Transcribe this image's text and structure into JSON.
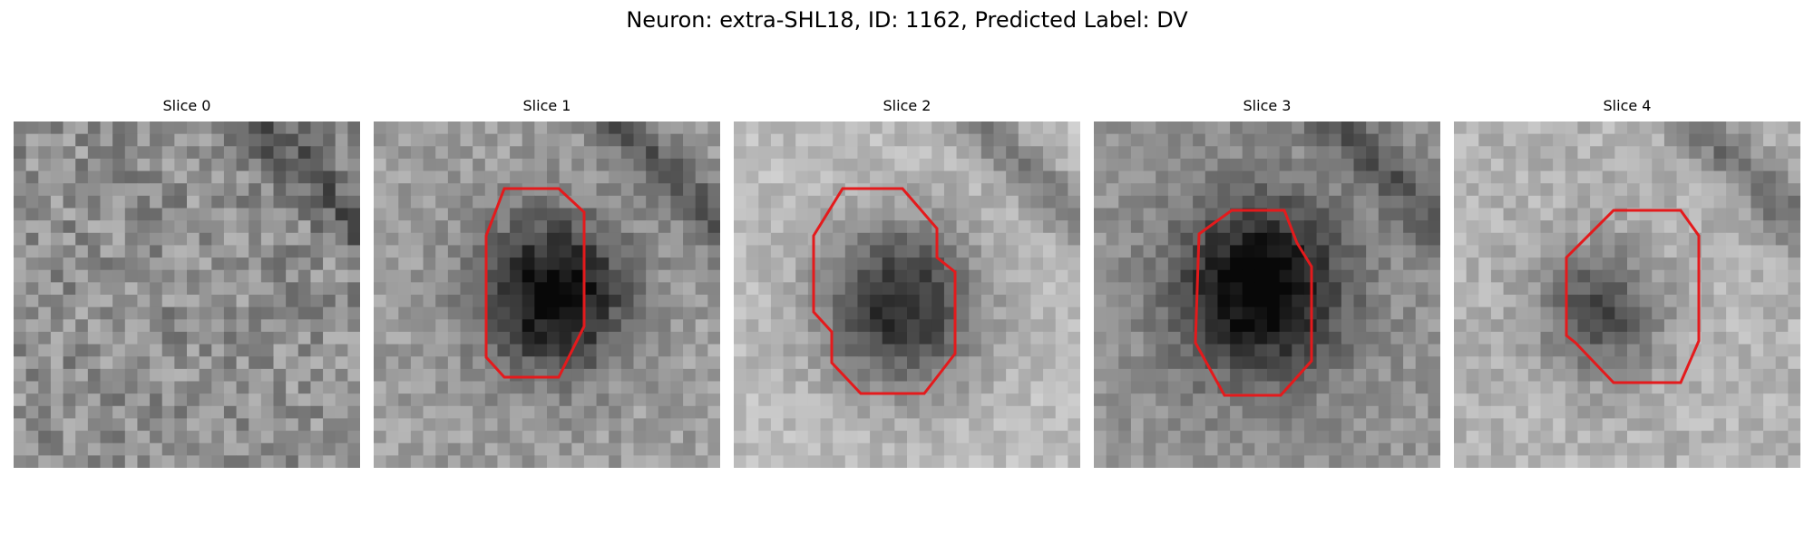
{
  "figure": {
    "title": "Neuron: extra-SHL18, ID: 1162, Predicted Label: DV"
  },
  "panels": [
    {
      "label": "Slice 0",
      "has_roi": false
    },
    {
      "label": "Slice 1",
      "has_roi": true
    },
    {
      "label": "Slice 2",
      "has_roi": true
    },
    {
      "label": "Slice 3",
      "has_roi": true
    },
    {
      "label": "Slice 4",
      "has_roi": true
    }
  ],
  "colors": {
    "roi_outline": "#e41a1c",
    "background": "#ffffff"
  }
}
